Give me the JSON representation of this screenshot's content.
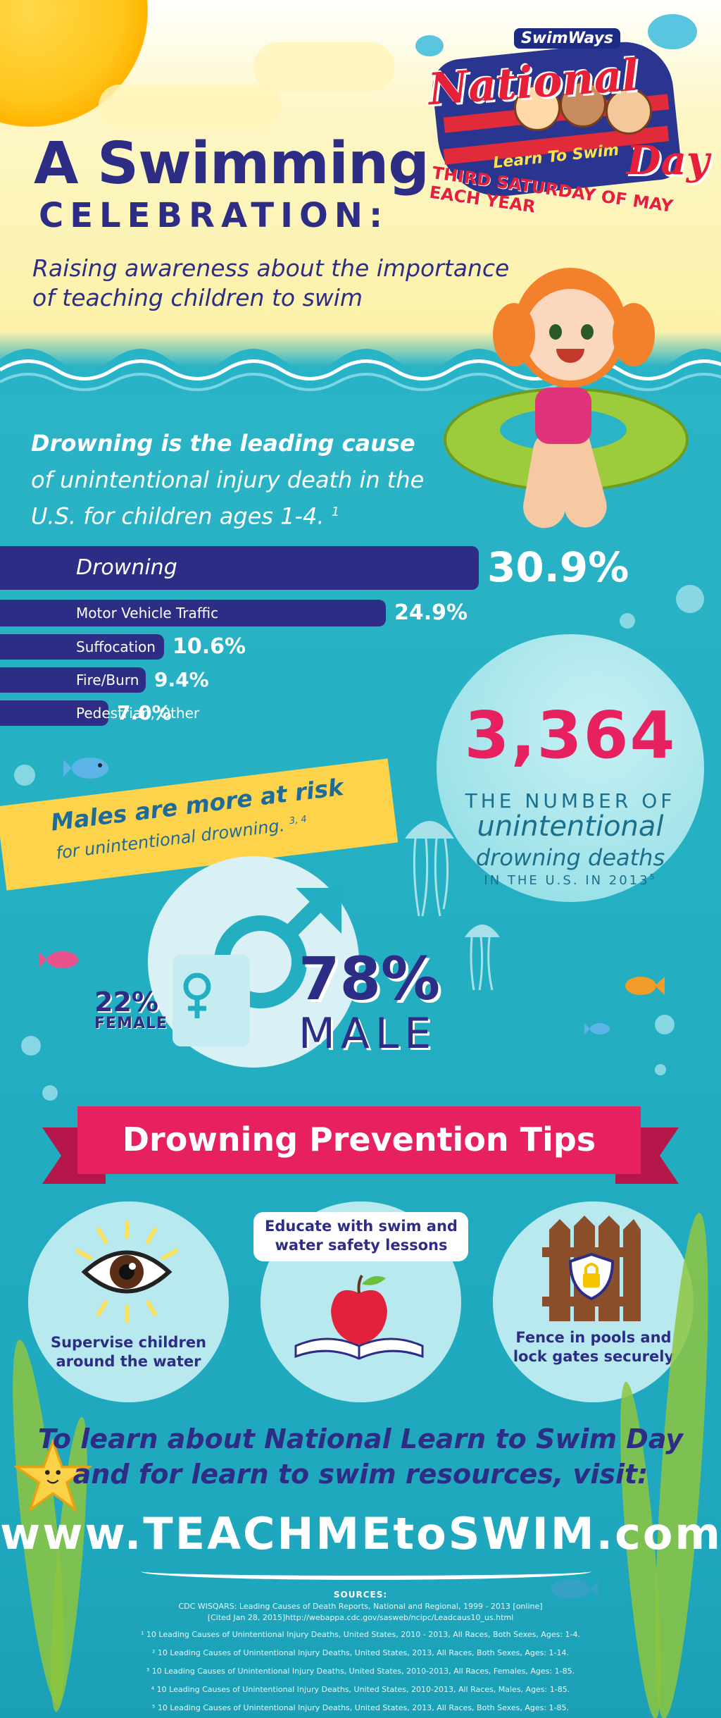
{
  "header": {
    "title_line1": "A Swimming",
    "title_line2": "CELEBRATION:",
    "subtitle": "Raising awareness about the importance of teaching children to swim"
  },
  "logo": {
    "brand": "SwimWays",
    "national": "National",
    "learn": "Learn To Swim",
    "day": "Day",
    "tagline": "THIRD SATURDAY OF MAY EACH YEAR"
  },
  "lead": {
    "strong": "Drowning is the leading cause",
    "rest": "of unintentional injury death in the U.S. for children ages 1-4.",
    "footnote": "1"
  },
  "chart_data": {
    "type": "bar",
    "categories": [
      "Drowning",
      "Motor Vehicle Traffic",
      "Suffocation",
      "Fire/Burn",
      "Pedestrian, Other"
    ],
    "values": [
      30.9,
      24.9,
      10.6,
      9.4,
      7.0
    ],
    "value_labels": [
      "30.9%",
      "24.9%",
      "10.6%",
      "9.4%",
      "7.0%"
    ],
    "title": "",
    "xlabel": "",
    "ylabel": "",
    "bar_color": "#2e2d86"
  },
  "stat": {
    "number": "3,364",
    "line1": "THE NUMBER OF",
    "line2": "unintentional",
    "line3": "drowning deaths",
    "line4": "IN THE U.S. IN 2013",
    "footnote": "5"
  },
  "males": {
    "headline": "Males are more at risk",
    "sub": "for unintentional drowning.",
    "footnote": "3, 4",
    "female_pct": "22%",
    "female_label": "FEMALE",
    "male_pct": "78%",
    "male_label": "MALE"
  },
  "tips": {
    "title": "Drowning Prevention Tips",
    "items": [
      {
        "text": "Supervise children around the water",
        "icon": "eye-icon"
      },
      {
        "text": "Educate with swim and water safety lessons",
        "icon": "apple-book-icon"
      },
      {
        "text": "Fence in pools and lock gates securely",
        "icon": "fence-lock-icon"
      }
    ]
  },
  "cta": {
    "line1": "To learn about National Learn to Swim Day",
    "line2": "and for learn to swim resources, visit:",
    "url": "www.TEACHMEtoSWIM.com"
  },
  "sources": {
    "heading": "SOURCES:",
    "lines": [
      "CDC WISQARS: Leading Causes of Death Reports, National and Regional, 1999 - 2013 [online]",
      "[Cited Jan 28, 2015]http://webappa.cdc.gov/sasweb/ncipc/Leadcaus10_us.html",
      "¹ 10 Leading Causes of Unintentional Injury Deaths, United States, 2010 - 2013, All Races, Both Sexes, Ages: 1-4.",
      "² 10 Leading Causes of Unintentional Injury Deaths, United States, 2013, All Races, Both Sexes, Ages: 1-14.",
      "³ 10 Leading Causes of Unintentional Injury Deaths, United States, 2010-2013, All Races, Females, Ages: 1-85.",
      "⁴ 10 Leading Causes of Unintentional Injury Deaths, United States, 2010-2013, All Races, Males, Ages: 1-85.",
      "⁵ 10 Leading Causes of Unintentional Injury Deaths, United States, 2013, All Races, Both Sexes, Ages: 1-85."
    ]
  },
  "colors": {
    "navy": "#2e2d86",
    "pink": "#e7215f",
    "teal": "#23aec2",
    "yellow": "#fcd34b"
  }
}
